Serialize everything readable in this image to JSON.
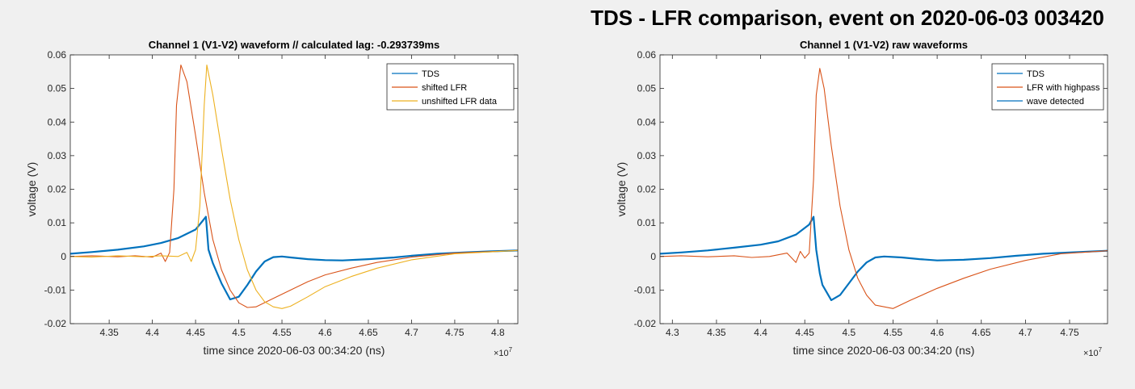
{
  "figure": {
    "suptitle": "TDS - LFR comparison, event on 2020-06-03 003420"
  },
  "colors": {
    "blue": "#0072bd",
    "orange": "#d95319",
    "yellow": "#edb120"
  },
  "chart_data": [
    {
      "type": "line",
      "title": "Channel 1 (V1-V2) waveform // calculated lag: -0.293739ms",
      "xlabel": "time since 2020-06-03 00:34:20 (ns)",
      "ylabel": "voltage (V)",
      "x_exponent": "×10^7",
      "xlim": [
        4.305,
        4.823
      ],
      "ylim": [
        -0.02,
        0.06
      ],
      "xticks": [
        4.35,
        4.4,
        4.45,
        4.5,
        4.55,
        4.6,
        4.65,
        4.7,
        4.75,
        4.8
      ],
      "xtick_labels": [
        "4.35",
        "4.4",
        "4.45",
        "4.5",
        "4.55",
        "4.6",
        "4.65",
        "4.7",
        "4.75",
        "4.8"
      ],
      "yticks": [
        -0.02,
        -0.01,
        0,
        0.01,
        0.02,
        0.03,
        0.04,
        0.05,
        0.06
      ],
      "ytick_labels": [
        "-0.02",
        "-0.01",
        "0",
        "0.01",
        "0.02",
        "0.03",
        "0.04",
        "0.05",
        "0.06"
      ],
      "legend_position": "top-right",
      "series": [
        {
          "name": "TDS",
          "color": "#0072bd",
          "thick": true,
          "x": [
            4.305,
            4.33,
            4.36,
            4.39,
            4.41,
            4.43,
            4.45,
            4.458,
            4.462,
            4.465,
            4.47,
            4.48,
            4.49,
            4.5,
            4.51,
            4.52,
            4.53,
            4.54,
            4.55,
            4.56,
            4.58,
            4.6,
            4.62,
            4.65,
            4.68,
            4.7,
            4.73,
            4.76,
            4.79,
            4.823
          ],
          "y": [
            0.0008,
            0.0013,
            0.002,
            0.003,
            0.004,
            0.0055,
            0.008,
            0.0105,
            0.0118,
            0.002,
            -0.002,
            -0.008,
            -0.0128,
            -0.012,
            -0.0085,
            -0.0045,
            -0.0015,
            -0.0002,
            0.0,
            -0.0003,
            -0.0008,
            -0.0011,
            -0.0012,
            -0.0008,
            -0.0003,
            0.0002,
            0.0008,
            0.0012,
            0.0015,
            0.0018
          ]
        },
        {
          "name": "shifted LFR",
          "color": "#d95319",
          "thick": false,
          "x": [
            4.305,
            4.33,
            4.36,
            4.38,
            4.4,
            4.41,
            4.415,
            4.42,
            4.425,
            4.428,
            4.433,
            4.44,
            4.45,
            4.46,
            4.47,
            4.48,
            4.49,
            4.5,
            4.51,
            4.52,
            4.54,
            4.56,
            4.58,
            4.6,
            4.63,
            4.66,
            4.7,
            4.75,
            4.823
          ],
          "y": [
            0.0,
            0.0002,
            -0.0001,
            0.0002,
            -0.0002,
            0.001,
            -0.0015,
            0.0012,
            0.02,
            0.045,
            0.057,
            0.052,
            0.036,
            0.019,
            0.005,
            -0.004,
            -0.01,
            -0.0138,
            -0.0152,
            -0.015,
            -0.0125,
            -0.01,
            -0.0075,
            -0.0055,
            -0.0035,
            -0.0018,
            -0.0002,
            0.001,
            0.0018
          ]
        },
        {
          "name": "unshifted LFR data",
          "color": "#edb120",
          "thick": false,
          "x": [
            4.305,
            4.33,
            4.36,
            4.39,
            4.41,
            4.43,
            4.44,
            4.445,
            4.45,
            4.455,
            4.46,
            4.463,
            4.47,
            4.48,
            4.49,
            4.5,
            4.51,
            4.52,
            4.53,
            4.54,
            4.55,
            4.56,
            4.58,
            4.6,
            4.63,
            4.66,
            4.7,
            4.75,
            4.823
          ],
          "y": [
            0.0,
            -0.0002,
            0.0002,
            -0.0001,
            0.0002,
            0.0,
            0.0012,
            -0.0015,
            0.002,
            0.015,
            0.045,
            0.057,
            0.048,
            0.032,
            0.017,
            0.005,
            -0.004,
            -0.01,
            -0.0135,
            -0.015,
            -0.0155,
            -0.0148,
            -0.012,
            -0.009,
            -0.006,
            -0.0035,
            -0.001,
            0.0008,
            0.0018
          ]
        }
      ]
    },
    {
      "type": "line",
      "title": "Channel 1 (V1-V2) raw waveforms",
      "xlabel": "time since 2020-06-03 00:34:20 (ns)",
      "ylabel": "voltage (V)",
      "x_exponent": "×10^7",
      "xlim": [
        4.286,
        4.793
      ],
      "ylim": [
        -0.02,
        0.06
      ],
      "xticks": [
        4.3,
        4.35,
        4.4,
        4.45,
        4.5,
        4.55,
        4.6,
        4.65,
        4.7,
        4.75
      ],
      "xtick_labels": [
        "4.3",
        "4.35",
        "4.4",
        "4.45",
        "4.5",
        "4.55",
        "4.6",
        "4.65",
        "4.7",
        "4.75"
      ],
      "yticks": [
        -0.02,
        -0.01,
        0,
        0.01,
        0.02,
        0.03,
        0.04,
        0.05,
        0.06
      ],
      "ytick_labels": [
        "-0.02",
        "-0.01",
        "0",
        "0.01",
        "0.02",
        "0.03",
        "0.04",
        "0.05",
        "0.06"
      ],
      "legend_position": "top-right",
      "series": [
        {
          "name": "TDS",
          "color": "#0072bd",
          "thick": true,
          "x": [
            4.286,
            4.31,
            4.34,
            4.37,
            4.4,
            4.42,
            4.44,
            4.455,
            4.46,
            4.463,
            4.467,
            4.47,
            4.48,
            4.49,
            4.5,
            4.51,
            4.52,
            4.53,
            4.54,
            4.56,
            4.58,
            4.6,
            4.63,
            4.66,
            4.69,
            4.72,
            4.75,
            4.793
          ],
          "y": [
            0.0008,
            0.0012,
            0.0018,
            0.0026,
            0.0035,
            0.0045,
            0.0065,
            0.0095,
            0.0118,
            0.002,
            -0.005,
            -0.0085,
            -0.013,
            -0.0115,
            -0.008,
            -0.0045,
            -0.0018,
            -0.0003,
            0.0,
            -0.0003,
            -0.0008,
            -0.0012,
            -0.001,
            -0.0005,
            0.0002,
            0.0008,
            0.0012,
            0.0017
          ]
        },
        {
          "name": "LFR with highpass",
          "color": "#d95319",
          "thick": false,
          "x": [
            4.286,
            4.31,
            4.34,
            4.37,
            4.39,
            4.41,
            4.43,
            4.44,
            4.445,
            4.45,
            4.455,
            4.46,
            4.463,
            4.467,
            4.472,
            4.48,
            4.49,
            4.5,
            4.51,
            4.52,
            4.53,
            4.55,
            4.57,
            4.6,
            4.63,
            4.66,
            4.7,
            4.74,
            4.793
          ],
          "y": [
            0.0,
            0.0002,
            -0.0001,
            0.0002,
            -0.0003,
            0.0,
            0.001,
            -0.0018,
            0.0015,
            -0.0005,
            0.001,
            0.023,
            0.048,
            0.056,
            0.05,
            0.033,
            0.015,
            0.002,
            -0.0065,
            -0.0115,
            -0.0145,
            -0.0155,
            -0.013,
            -0.0095,
            -0.0065,
            -0.0038,
            -0.0012,
            0.0008,
            0.0017
          ]
        }
      ],
      "legend_entries": [
        {
          "name": "TDS",
          "color": "#0072bd"
        },
        {
          "name": "LFR with highpass",
          "color": "#d95319"
        },
        {
          "name": "wave detected",
          "color": "#0072bd"
        }
      ]
    }
  ]
}
